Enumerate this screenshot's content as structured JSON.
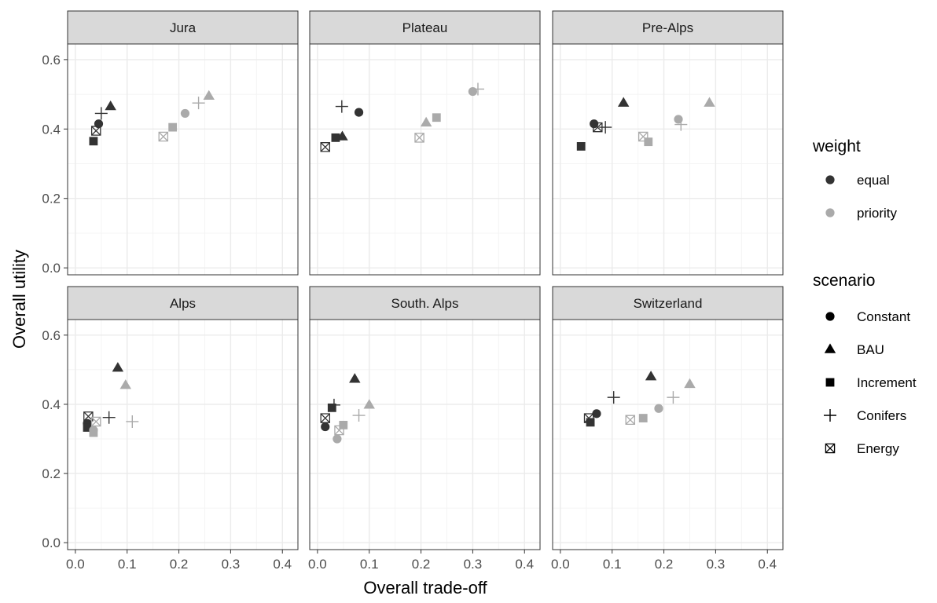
{
  "chart_data": {
    "type": "scatter",
    "facets": [
      "Jura",
      "Plateau",
      "Pre-Alps",
      "Alps",
      "South. Alps",
      "Switzerland"
    ],
    "xlabel": "Overall trade-off",
    "ylabel": "Overall utility",
    "xlim": [
      -0.015,
      0.43
    ],
    "ylim": [
      -0.02,
      0.645
    ],
    "xticks": [
      "0.0",
      "0.1",
      "0.2",
      "0.3",
      "0.4"
    ],
    "yticks": [
      "0.0",
      "0.2",
      "0.4",
      "0.6"
    ],
    "grid": true,
    "legend_position": "right",
    "legend": {
      "weight": {
        "title": "weight",
        "items": [
          {
            "label": "equal",
            "color": "#333333"
          },
          {
            "label": "priority",
            "color": "#aaaaaa"
          }
        ]
      },
      "scenario": {
        "title": "scenario",
        "items": [
          {
            "label": "Constant",
            "shape": "circle"
          },
          {
            "label": "BAU",
            "shape": "triangle"
          },
          {
            "label": "Increment",
            "shape": "square"
          },
          {
            "label": "Conifers",
            "shape": "plus"
          },
          {
            "label": "Energy",
            "shape": "energy"
          }
        ]
      }
    },
    "colors": {
      "equal": "#333333",
      "priority": "#aaaaaa",
      "strip": "#d9d9d9",
      "grid": "#ebebeb"
    },
    "points": {
      "Jura": [
        {
          "scenario": "Constant",
          "weight": "equal",
          "x": 0.045,
          "y": 0.415
        },
        {
          "scenario": "BAU",
          "weight": "equal",
          "x": 0.068,
          "y": 0.465
        },
        {
          "scenario": "Increment",
          "weight": "equal",
          "x": 0.035,
          "y": 0.365
        },
        {
          "scenario": "Conifers",
          "weight": "equal",
          "x": 0.05,
          "y": 0.445
        },
        {
          "scenario": "Energy",
          "weight": "equal",
          "x": 0.04,
          "y": 0.395
        },
        {
          "scenario": "Constant",
          "weight": "priority",
          "x": 0.212,
          "y": 0.445
        },
        {
          "scenario": "BAU",
          "weight": "priority",
          "x": 0.258,
          "y": 0.495
        },
        {
          "scenario": "Increment",
          "weight": "priority",
          "x": 0.188,
          "y": 0.405
        },
        {
          "scenario": "Conifers",
          "weight": "priority",
          "x": 0.238,
          "y": 0.475
        },
        {
          "scenario": "Energy",
          "weight": "priority",
          "x": 0.17,
          "y": 0.378
        }
      ],
      "Plateau": [
        {
          "scenario": "Constant",
          "weight": "equal",
          "x": 0.08,
          "y": 0.448
        },
        {
          "scenario": "BAU",
          "weight": "equal",
          "x": 0.048,
          "y": 0.378
        },
        {
          "scenario": "Increment",
          "weight": "equal",
          "x": 0.035,
          "y": 0.375
        },
        {
          "scenario": "Conifers",
          "weight": "equal",
          "x": 0.047,
          "y": 0.465
        },
        {
          "scenario": "Energy",
          "weight": "equal",
          "x": 0.015,
          "y": 0.348
        },
        {
          "scenario": "Constant",
          "weight": "priority",
          "x": 0.3,
          "y": 0.508
        },
        {
          "scenario": "BAU",
          "weight": "priority",
          "x": 0.21,
          "y": 0.418
        },
        {
          "scenario": "Increment",
          "weight": "priority",
          "x": 0.23,
          "y": 0.433
        },
        {
          "scenario": "Conifers",
          "weight": "priority",
          "x": 0.31,
          "y": 0.515
        },
        {
          "scenario": "Energy",
          "weight": "priority",
          "x": 0.197,
          "y": 0.375
        }
      ],
      "Pre-Alps": [
        {
          "scenario": "Constant",
          "weight": "equal",
          "x": 0.065,
          "y": 0.415
        },
        {
          "scenario": "BAU",
          "weight": "equal",
          "x": 0.122,
          "y": 0.475
        },
        {
          "scenario": "Increment",
          "weight": "equal",
          "x": 0.04,
          "y": 0.35
        },
        {
          "scenario": "Conifers",
          "weight": "equal",
          "x": 0.087,
          "y": 0.405
        },
        {
          "scenario": "Energy",
          "weight": "equal",
          "x": 0.072,
          "y": 0.405
        },
        {
          "scenario": "Constant",
          "weight": "priority",
          "x": 0.228,
          "y": 0.428
        },
        {
          "scenario": "BAU",
          "weight": "priority",
          "x": 0.288,
          "y": 0.475
        },
        {
          "scenario": "Increment",
          "weight": "priority",
          "x": 0.17,
          "y": 0.363
        },
        {
          "scenario": "Conifers",
          "weight": "priority",
          "x": 0.233,
          "y": 0.413
        },
        {
          "scenario": "Energy",
          "weight": "priority",
          "x": 0.16,
          "y": 0.378
        }
      ],
      "Alps": [
        {
          "scenario": "Constant",
          "weight": "equal",
          "x": 0.023,
          "y": 0.345
        },
        {
          "scenario": "BAU",
          "weight": "equal",
          "x": 0.082,
          "y": 0.505
        },
        {
          "scenario": "Increment",
          "weight": "equal",
          "x": 0.023,
          "y": 0.333
        },
        {
          "scenario": "Conifers",
          "weight": "equal",
          "x": 0.065,
          "y": 0.362
        },
        {
          "scenario": "Energy",
          "weight": "equal",
          "x": 0.025,
          "y": 0.365
        },
        {
          "scenario": "Constant",
          "weight": "priority",
          "x": 0.035,
          "y": 0.325
        },
        {
          "scenario": "BAU",
          "weight": "priority",
          "x": 0.097,
          "y": 0.455
        },
        {
          "scenario": "Increment",
          "weight": "priority",
          "x": 0.035,
          "y": 0.318
        },
        {
          "scenario": "Conifers",
          "weight": "priority",
          "x": 0.11,
          "y": 0.35
        },
        {
          "scenario": "Energy",
          "weight": "priority",
          "x": 0.04,
          "y": 0.35
        }
      ],
      "South. Alps": [
        {
          "scenario": "Constant",
          "weight": "equal",
          "x": 0.015,
          "y": 0.335
        },
        {
          "scenario": "BAU",
          "weight": "equal",
          "x": 0.072,
          "y": 0.473
        },
        {
          "scenario": "Increment",
          "weight": "equal",
          "x": 0.028,
          "y": 0.39
        },
        {
          "scenario": "Conifers",
          "weight": "equal",
          "x": 0.032,
          "y": 0.398
        },
        {
          "scenario": "Energy",
          "weight": "equal",
          "x": 0.015,
          "y": 0.36
        },
        {
          "scenario": "Constant",
          "weight": "priority",
          "x": 0.038,
          "y": 0.3
        },
        {
          "scenario": "BAU",
          "weight": "priority",
          "x": 0.1,
          "y": 0.398
        },
        {
          "scenario": "Increment",
          "weight": "priority",
          "x": 0.05,
          "y": 0.34
        },
        {
          "scenario": "Conifers",
          "weight": "priority",
          "x": 0.08,
          "y": 0.368
        },
        {
          "scenario": "Energy",
          "weight": "priority",
          "x": 0.042,
          "y": 0.325
        }
      ],
      "Switzerland": [
        {
          "scenario": "Constant",
          "weight": "equal",
          "x": 0.07,
          "y": 0.373
        },
        {
          "scenario": "BAU",
          "weight": "equal",
          "x": 0.175,
          "y": 0.48
        },
        {
          "scenario": "Increment",
          "weight": "equal",
          "x": 0.058,
          "y": 0.348
        },
        {
          "scenario": "Conifers",
          "weight": "equal",
          "x": 0.103,
          "y": 0.42
        },
        {
          "scenario": "Energy",
          "weight": "equal",
          "x": 0.055,
          "y": 0.36
        },
        {
          "scenario": "Constant",
          "weight": "priority",
          "x": 0.19,
          "y": 0.388
        },
        {
          "scenario": "BAU",
          "weight": "priority",
          "x": 0.25,
          "y": 0.458
        },
        {
          "scenario": "Increment",
          "weight": "priority",
          "x": 0.16,
          "y": 0.36
        },
        {
          "scenario": "Conifers",
          "weight": "priority",
          "x": 0.218,
          "y": 0.42
        },
        {
          "scenario": "Energy",
          "weight": "priority",
          "x": 0.135,
          "y": 0.355
        }
      ]
    }
  }
}
